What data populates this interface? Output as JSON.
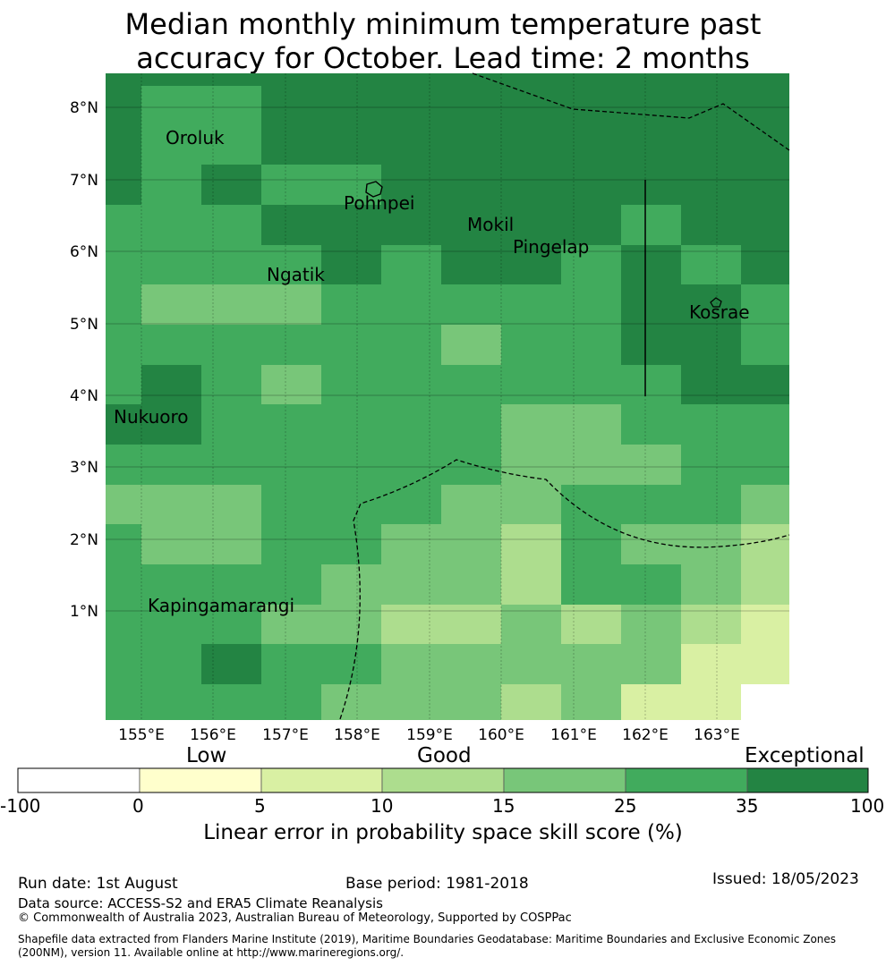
{
  "title_line1": "Median monthly minimum temperature past",
  "title_line2": "accuracy for October. Lead time: 2 months",
  "map": {
    "lon_ticks": [
      "155°E",
      "156°E",
      "157°E",
      "158°E",
      "159°E",
      "160°E",
      "161°E",
      "162°E",
      "163°E"
    ],
    "lat_ticks": [
      "8°N",
      "7°N",
      "6°N",
      "5°N",
      "4°N",
      "3°N",
      "2°N",
      "1°N"
    ],
    "places": [
      {
        "name": "Oroluk"
      },
      {
        "name": "Pohnpei"
      },
      {
        "name": "Mokil"
      },
      {
        "name": "Pingelap"
      },
      {
        "name": "Ngatik"
      },
      {
        "name": "Kosrae"
      },
      {
        "name": "Nukuoro"
      },
      {
        "name": "Kapingamarangi"
      }
    ]
  },
  "legend": {
    "categories": [
      "Low",
      "Good",
      "Exceptional"
    ],
    "ticks": [
      "-100",
      "0",
      "5",
      "10",
      "15",
      "25",
      "35",
      "100"
    ],
    "colors": [
      "#ffffff",
      "#ffffcc",
      "#d9f0a3",
      "#addd8e",
      "#78c679",
      "#41ab5d",
      "#238443"
    ],
    "label": "Linear error in probability space skill score (%)"
  },
  "footer": {
    "run_date": "Run date: 1st August",
    "base_period": "Base period: 1981-2018",
    "issued": "Issued: 18/05/2023",
    "data_source": "Data source: ACCESS-S2 and ERA5 Climate Reanalysis",
    "copyright": "© Commonwealth of Australia 2023, Australian Bureau of Meteorology, Supported by COSPPac",
    "shapefile_1": "Shapefile data extracted from Flanders Marine Institute (2019), Maritime Boundaries Geodatabase: Maritime Boundaries and Exclusive Economic Zones",
    "shapefile_2": "(200NM), version 11. Available online at http://www.marineregions.org/."
  }
}
